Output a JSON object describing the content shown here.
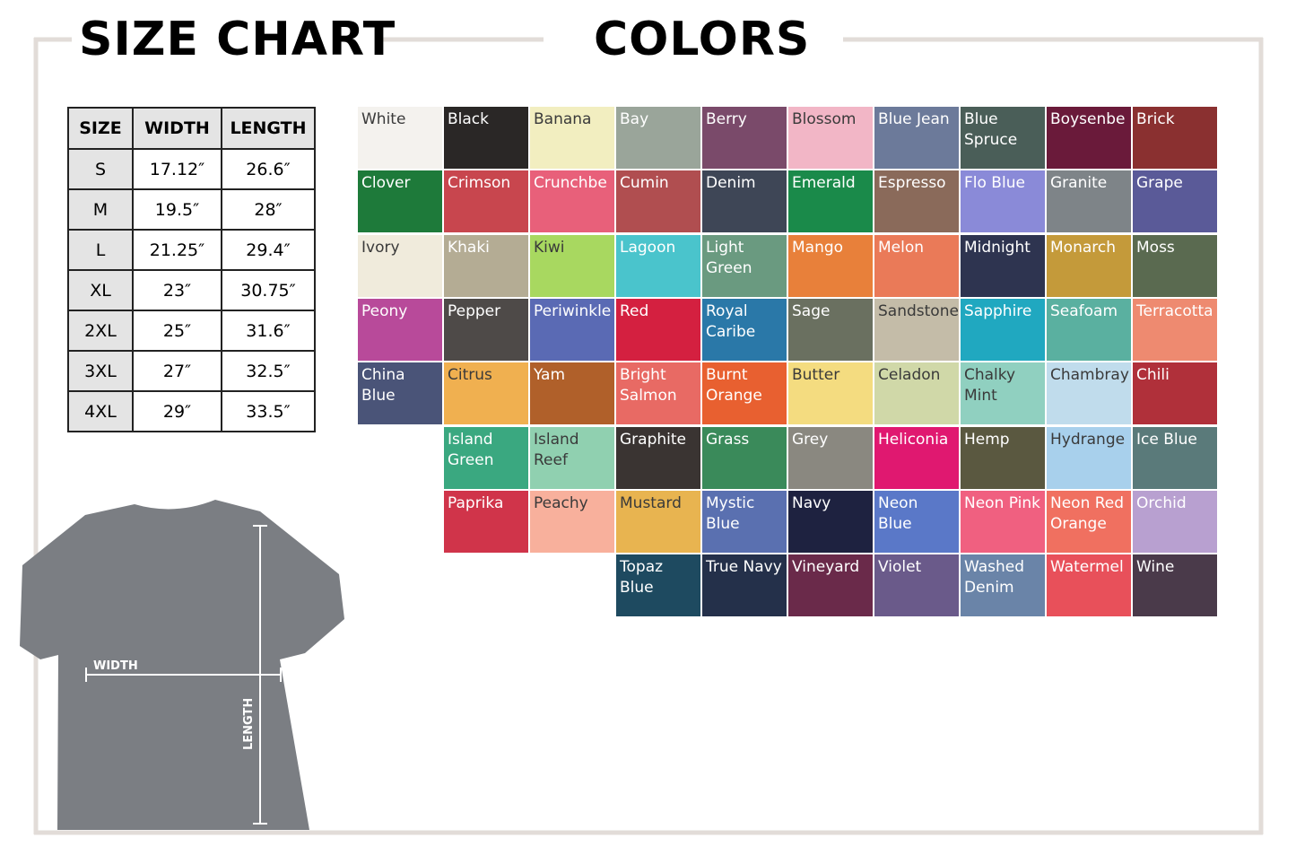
{
  "header": {
    "size_title": "SIZE CHART",
    "colors_title": "COLORS"
  },
  "table": {
    "headers": [
      "SIZE",
      "WIDTH",
      "LENGTH"
    ],
    "rows": [
      [
        "S",
        "17.12″",
        "26.6″"
      ],
      [
        "M",
        "19.5″",
        "28″"
      ],
      [
        "L",
        "21.25″",
        "29.4″"
      ],
      [
        "XL",
        "23″",
        "30.75″"
      ],
      [
        "2XL",
        "25″",
        "31.6″"
      ],
      [
        "3XL",
        "27″",
        "32.5″"
      ],
      [
        "4XL",
        "29″",
        "33.5″"
      ]
    ]
  },
  "shirt": {
    "width_label": "WIDTH",
    "length_label": "LENGTH"
  },
  "colors": {
    "rows": [
      [
        {
          "name": "White",
          "color": "#f4f2ee"
        },
        {
          "name": "Black",
          "color": "#2a2726"
        },
        {
          "name": "Banana",
          "color": "#f2eec0"
        },
        {
          "name": "Bay",
          "color": "#9aa59a"
        },
        {
          "name": "Berry",
          "color": "#7a4a6a"
        },
        {
          "name": "Blossom",
          "color": "#f2b6c6"
        },
        {
          "name": "Blue Jean",
          "color": "#6c7a9a"
        },
        {
          "name": "Blue Spruce",
          "color": "#4a5e58"
        },
        {
          "name": "Boysenbe",
          "color": "#6a1a3a"
        },
        {
          "name": "Brick",
          "color": "#8a3030"
        }
      ],
      [
        {
          "name": "Clover",
          "color": "#1e7a3a"
        },
        {
          "name": "Crimson",
          "color": "#c8464e"
        },
        {
          "name": "Crunchbe",
          "color": "#e8607a"
        },
        {
          "name": "Cumin",
          "color": "#b04e50"
        },
        {
          "name": "Denim",
          "color": "#3e4656"
        },
        {
          "name": "Emerald",
          "color": "#1a8a4a"
        },
        {
          "name": "Espresso",
          "color": "#8a6a5a"
        },
        {
          "name": "Flo Blue",
          "color": "#8a8ad8"
        },
        {
          "name": "Granite",
          "color": "#7e8488"
        },
        {
          "name": "Grape",
          "color": "#5a5a98"
        }
      ],
      [
        {
          "name": "Ivory",
          "color": "#f0ebdc"
        },
        {
          "name": "Khaki",
          "color": "#b4ac94"
        },
        {
          "name": "Kiwi",
          "color": "#a8d860"
        },
        {
          "name": "Lagoon",
          "color": "#4ac4cc"
        },
        {
          "name": "Light Green",
          "color": "#6a9a80"
        },
        {
          "name": "Mango",
          "color": "#e8803a"
        },
        {
          "name": "Melon",
          "color": "#ea7a58"
        },
        {
          "name": "Midnight",
          "color": "#2e3450"
        },
        {
          "name": "Monarch",
          "color": "#c49a3a"
        },
        {
          "name": "Moss",
          "color": "#5a6a50"
        }
      ],
      [
        {
          "name": "Peony",
          "color": "#b84a9a"
        },
        {
          "name": "Pepper",
          "color": "#4e4a48"
        },
        {
          "name": "Periwinkle",
          "color": "#5a6ab4"
        },
        {
          "name": "Red",
          "color": "#d42040"
        },
        {
          "name": "Royal Caribe",
          "color": "#2a78a8"
        },
        {
          "name": "Sage",
          "color": "#6a7060"
        },
        {
          "name": "Sandstone",
          "color": "#c4bca8"
        },
        {
          "name": "Sapphire",
          "color": "#20a8c0"
        },
        {
          "name": "Seafoam",
          "color": "#5ab0a0"
        },
        {
          "name": "Terracotta",
          "color": "#ee8a70"
        }
      ],
      [
        {
          "name": "China Blue",
          "color": "#4a5478"
        },
        {
          "name": "Citrus",
          "color": "#f0b050"
        },
        {
          "name": "Yam",
          "color": "#b0602a"
        },
        {
          "name": "Bright Salmon",
          "color": "#e86a64"
        },
        {
          "name": "Burnt Orange",
          "color": "#e86030"
        },
        {
          "name": "Butter",
          "color": "#f4dc80"
        },
        {
          "name": "Celadon",
          "color": "#d0d8a8"
        },
        {
          "name": "Chalky Mint",
          "color": "#90d0c0"
        },
        {
          "name": "Chambray",
          "color": "#c0dcec"
        },
        {
          "name": "Chili",
          "color": "#b0303a"
        }
      ],
      [
        null,
        {
          "name": "Island Green",
          "color": "#3aa880"
        },
        {
          "name": "Island Reef",
          "color": "#90d0b0"
        },
        {
          "name": "Graphite",
          "color": "#3a3432"
        },
        {
          "name": "Grass",
          "color": "#3a8a5a"
        },
        {
          "name": "Grey",
          "color": "#8a8880"
        },
        {
          "name": "Heliconia",
          "color": "#e01870"
        },
        {
          "name": "Hemp",
          "color": "#5a5840"
        },
        {
          "name": "Hydrange",
          "color": "#a8d0ec"
        },
        {
          "name": "Ice Blue",
          "color": "#5a7a7a"
        }
      ],
      [
        null,
        {
          "name": "Paprika",
          "color": "#d0344a"
        },
        {
          "name": "Peachy",
          "color": "#f8b09c"
        },
        {
          "name": "Mustard",
          "color": "#e8b450"
        },
        {
          "name": "Mystic Blue",
          "color": "#5a70b0"
        },
        {
          "name": "Navy",
          "color": "#1e2240"
        },
        {
          "name": "Neon Blue",
          "color": "#5a78c8"
        },
        {
          "name": "Neon Pink",
          "color": "#f06080"
        },
        {
          "name": "Neon Red Orange",
          "color": "#f07060"
        },
        {
          "name": "Orchid",
          "color": "#b8a0d0"
        }
      ],
      [
        null,
        null,
        null,
        {
          "name": "Topaz Blue",
          "color": "#1e4a60"
        },
        {
          "name": "True Navy",
          "color": "#24304a"
        },
        {
          "name": "Vineyard",
          "color": "#6a2a4a"
        },
        {
          "name": "Violet",
          "color": "#6a5a8a"
        },
        {
          "name": "Washed Denim",
          "color": "#6a84a8"
        },
        {
          "name": "Watermel",
          "color": "#e8505a"
        },
        {
          "name": "Wine",
          "color": "#4a3a4a"
        }
      ]
    ]
  }
}
